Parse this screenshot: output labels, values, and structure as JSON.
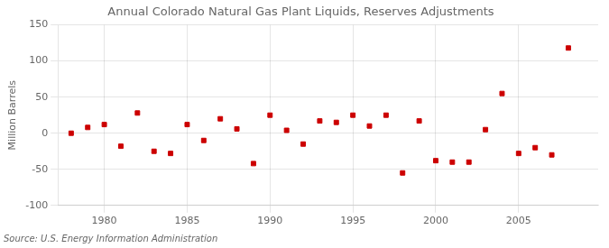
{
  "chart_data": {
    "type": "scatter",
    "title": "Annual Colorado Natural Gas Plant Liquids, Reserves Adjustments",
    "ylabel": "Million Barrels",
    "source": "Source: U.S. Energy Information Administration",
    "x": [
      1978,
      1979,
      1980,
      1981,
      1982,
      1983,
      1984,
      1985,
      1986,
      1987,
      1988,
      1989,
      1990,
      1991,
      1992,
      1993,
      1994,
      1995,
      1996,
      1997,
      1998,
      1999,
      2000,
      2001,
      2002,
      2003,
      2004,
      2005,
      2006,
      2007,
      2008
    ],
    "values": [
      0,
      8,
      12,
      -18,
      28,
      -25,
      -28,
      12,
      -10,
      20,
      6,
      -42,
      25,
      4,
      -15,
      17,
      15,
      25,
      10,
      25,
      -55,
      17,
      -38,
      -40,
      -40,
      5,
      55,
      -28,
      -20,
      -30,
      118
    ],
    "color": "#cc0000",
    "marker": "square",
    "xlim": [
      1977.2,
      2009.8
    ],
    "xticks": [
      1980,
      1985,
      1990,
      1995,
      2000,
      2005
    ],
    "ylim": [
      -100,
      150
    ],
    "yticks": [
      -100,
      -50,
      0,
      50,
      100,
      150
    ],
    "grid": true
  }
}
